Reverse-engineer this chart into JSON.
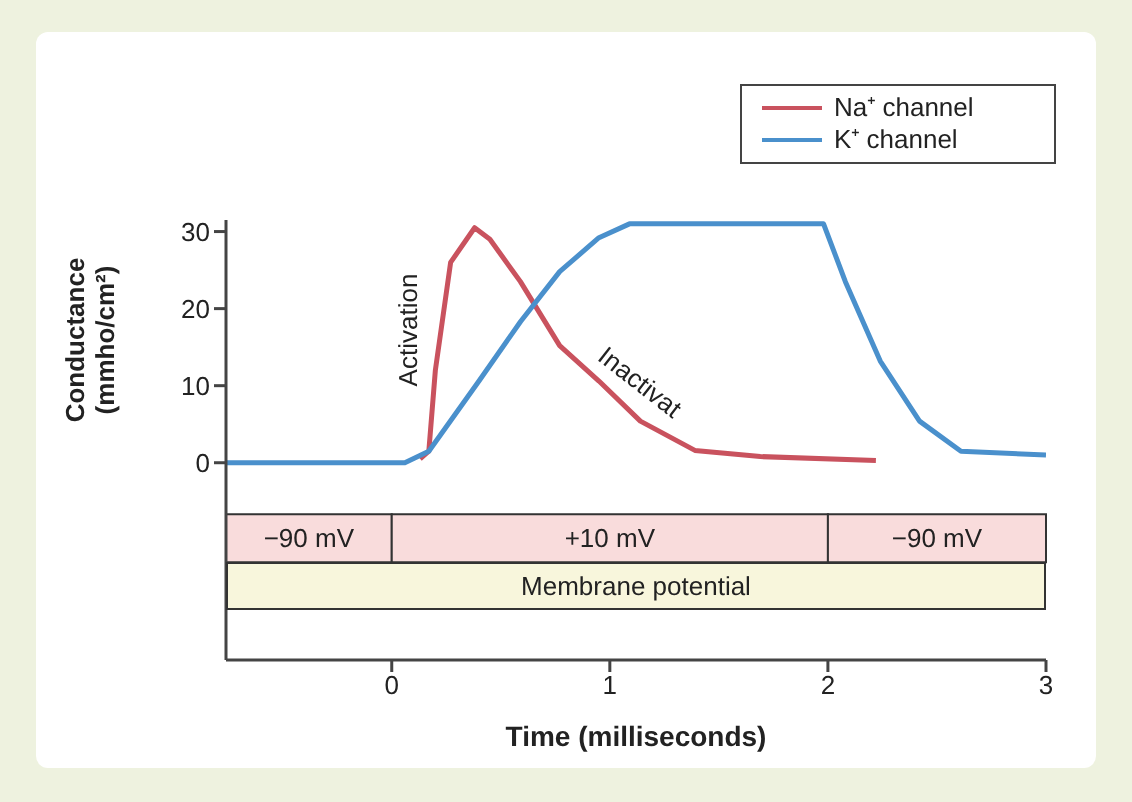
{
  "chart_data": {
    "type": "line",
    "xlabel": "Time (milliseconds)",
    "ylabel": "Conductance (mmho/cm²)",
    "xlim": [
      -0.76,
      3
    ],
    "xticks": [
      0,
      1,
      2,
      3
    ],
    "ylim": [
      -25.6,
      31.5
    ],
    "yticks": [
      0,
      10,
      20,
      30
    ],
    "grid": false,
    "legend": "top right",
    "marker": "none",
    "line_style": "solid",
    "series": [
      {
        "name": "Na⁺ channel",
        "color": "#c9525e",
        "x": [
          0.13,
          0.17,
          0.2,
          0.27,
          0.38,
          0.45,
          0.59,
          0.77,
          0.95,
          1.14,
          1.39,
          1.69,
          2.22
        ],
        "values": [
          0.5,
          1.5,
          12,
          26,
          30.5,
          29,
          23.5,
          15.2,
          10.6,
          5.4,
          1.6,
          0.8,
          0.3
        ]
      },
      {
        "name": "K⁺ channel",
        "color": "#4a90cc",
        "x": [
          -0.76,
          0.06,
          0.17,
          0.4,
          0.59,
          0.77,
          0.95,
          1.09,
          1.98,
          2.08,
          2.24,
          2.42,
          2.61,
          3.0
        ],
        "values": [
          0,
          0,
          1.5,
          10.6,
          18.3,
          24.8,
          29.2,
          31,
          31,
          23.5,
          13.2,
          5.4,
          1.5,
          1
        ]
      }
    ],
    "annotations": [
      "Activation",
      "Inactivat",
      "Membrane potential"
    ],
    "bands": [
      {
        "axis": "x",
        "from": -0.76,
        "to": 0,
        "label": "−90 mV",
        "color": "#f9dcdc"
      },
      {
        "axis": "x",
        "from": 0,
        "to": 2,
        "label": "+10 mV",
        "color": "#f9dcdc"
      },
      {
        "axis": "x",
        "from": 2,
        "to": 3,
        "label": "−90 mV",
        "color": "#f9dcdc"
      }
    ]
  }
}
